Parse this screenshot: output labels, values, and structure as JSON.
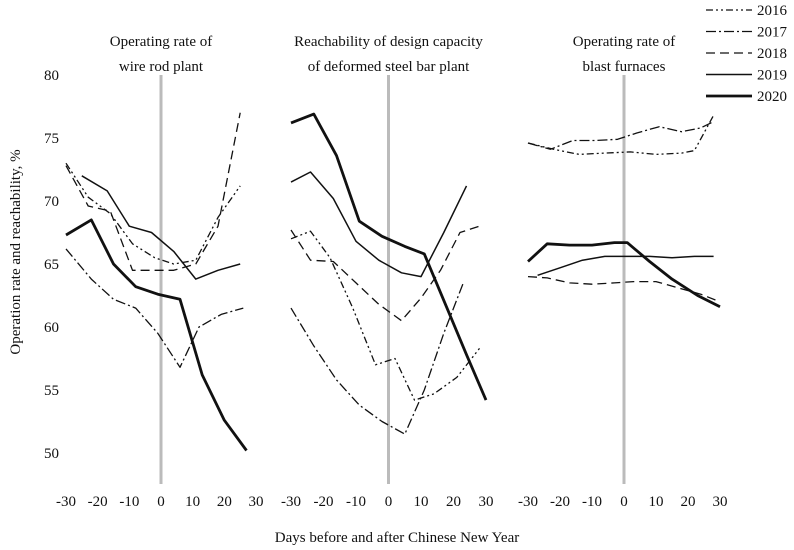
{
  "chart_data": {
    "type": "line",
    "xlabel": "Days before and after Chinese New Year",
    "ylabel": "Operation rate and reachability, %",
    "ylim": [
      50,
      80
    ],
    "yticks": [
      50,
      55,
      60,
      65,
      70,
      75,
      80
    ],
    "xticks": [
      -30,
      -20,
      -10,
      0,
      10,
      20,
      30
    ],
    "xlim": [
      -30,
      30
    ],
    "legend": {
      "placement": "top-right",
      "entries": [
        "2016",
        "2017",
        "2018",
        "2019",
        "2020"
      ]
    },
    "series_styles": {
      "2016": {
        "dash": "7 3 2 3 2 3",
        "width": 1.3,
        "color": "#111111"
      },
      "2017": {
        "dash": "10 3 2 3",
        "width": 1.3,
        "color": "#111111"
      },
      "2018": {
        "dash": "9 5",
        "width": 1.3,
        "color": "#111111"
      },
      "2019": {
        "dash": "",
        "width": 1.5,
        "color": "#111111"
      },
      "2020": {
        "dash": "",
        "width": 2.8,
        "color": "#111111"
      }
    },
    "reference_line": {
      "x": 0,
      "color": "#bbbbbb"
    },
    "panels": [
      {
        "title_lines": [
          "Operating rate of",
          "wire rod plant"
        ],
        "series": [
          {
            "name": "2016",
            "x": [
              -30,
              -23,
              -16,
              -9,
              -2,
              4,
              11,
              18,
              25
            ],
            "y": [
              73.0,
              70.3,
              69.0,
              66.6,
              65.5,
              65.0,
              65.3,
              68.7,
              71.2
            ]
          },
          {
            "name": "2017",
            "x": [
              -30,
              -22,
              -15,
              -8,
              -1,
              6,
              12,
              19,
              26
            ],
            "y": [
              66.2,
              63.8,
              62.2,
              61.5,
              59.5,
              56.8,
              60.0,
              61.0,
              61.5
            ]
          },
          {
            "name": "2018",
            "x": [
              -30,
              -23,
              -16,
              -9,
              -2,
              4,
              11,
              18,
              25
            ],
            "y": [
              72.8,
              69.6,
              69.2,
              64.5,
              64.5,
              64.5,
              65.0,
              68.0,
              77.0
            ]
          },
          {
            "name": "2019",
            "x": [
              -25,
              -17,
              -10,
              -3,
              4,
              11,
              18,
              25
            ],
            "y": [
              72.0,
              70.8,
              68.0,
              67.5,
              66.0,
              63.8,
              64.5,
              65.0
            ]
          },
          {
            "name": "2020",
            "x": [
              -30,
              -22,
              -15,
              -8,
              -1,
              6,
              13,
              20,
              27
            ],
            "y": [
              67.3,
              68.5,
              65.0,
              63.2,
              62.6,
              62.2,
              56.2,
              52.6,
              50.2
            ]
          }
        ]
      },
      {
        "title_lines": [
          "Reachability of design capacity",
          "of deformed steel bar plant"
        ],
        "series": [
          {
            "name": "2016",
            "x": [
              -30,
              -24,
              -18,
              -11,
              -4,
              2,
              8,
              14,
              21,
              28
            ],
            "y": [
              67.0,
              67.6,
              65.5,
              61.5,
              57.0,
              57.5,
              54.2,
              54.7,
              56.0,
              58.3
            ]
          },
          {
            "name": "2017",
            "x": [
              -30,
              -23,
              -16,
              -9,
              -2,
              5,
              11,
              17,
              23
            ],
            "y": [
              61.5,
              58.5,
              55.8,
              53.8,
              52.5,
              51.5,
              55.0,
              59.5,
              63.5
            ]
          },
          {
            "name": "2018",
            "x": [
              -30,
              -24,
              -17,
              -10,
              -3,
              4,
              10,
              16,
              22,
              28
            ],
            "y": [
              67.7,
              65.3,
              65.2,
              63.5,
              61.8,
              60.5,
              62.3,
              64.5,
              67.5,
              68.0
            ]
          },
          {
            "name": "2019",
            "x": [
              -30,
              -24,
              -17,
              -10,
              -3,
              4,
              10,
              17,
              24
            ],
            "y": [
              71.5,
              72.3,
              70.2,
              66.8,
              65.3,
              64.3,
              64.0,
              67.5,
              71.2
            ]
          },
          {
            "name": "2020",
            "x": [
              -30,
              -23,
              -16,
              -9,
              -2,
              5,
              11,
              18,
              24,
              30
            ],
            "y": [
              76.2,
              76.9,
              73.6,
              68.4,
              67.2,
              66.4,
              65.8,
              61.5,
              57.8,
              54.2
            ]
          }
        ]
      },
      {
        "title_lines": [
          "Operating rate of",
          "blast furnaces"
        ],
        "series": [
          {
            "name": "2016",
            "x": [
              -30,
              -22,
              -14,
              -6,
              2,
              10,
              18,
              22,
              28
            ],
            "y": [
              74.6,
              74.1,
              73.7,
              73.8,
              73.9,
              73.7,
              73.8,
              74.0,
              76.8
            ]
          },
          {
            "name": "2017",
            "x": [
              -30,
              -23,
              -16,
              -9,
              -2,
              4,
              11,
              18,
              24,
              28
            ],
            "y": [
              74.6,
              74.1,
              74.8,
              74.8,
              74.9,
              75.4,
              75.9,
              75.5,
              75.8,
              76.3
            ]
          },
          {
            "name": "2018",
            "x": [
              -30,
              -24,
              -17,
              -10,
              -3,
              3,
              10,
              17,
              24,
              30
            ],
            "y": [
              64.0,
              63.9,
              63.5,
              63.4,
              63.5,
              63.6,
              63.6,
              63.1,
              62.6,
              62.0
            ]
          },
          {
            "name": "2019",
            "x": [
              -27,
              -20,
              -13,
              -6,
              1,
              8,
              15,
              22,
              28
            ],
            "y": [
              64.1,
              64.7,
              65.3,
              65.6,
              65.6,
              65.6,
              65.5,
              65.6,
              65.6
            ]
          },
          {
            "name": "2020",
            "x": [
              -30,
              -24,
              -17,
              -10,
              -3,
              1,
              8,
              15,
              23,
              30
            ],
            "y": [
              65.2,
              66.6,
              66.5,
              66.5,
              66.7,
              66.7,
              65.2,
              63.8,
              62.5,
              61.6
            ]
          }
        ]
      }
    ]
  }
}
